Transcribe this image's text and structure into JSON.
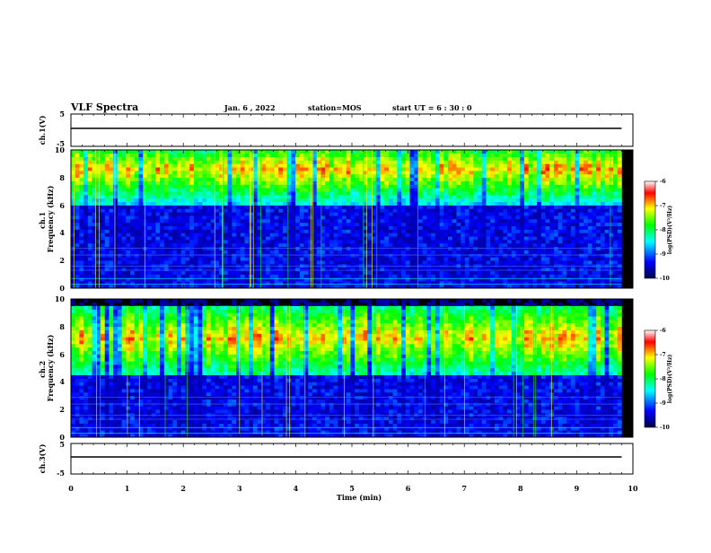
{
  "header": {
    "title": "VLF Spectra",
    "date": "Jan. 6 , 2022",
    "station": "station=MOS",
    "start_ut": "start UT =   6 : 30 : 0"
  },
  "chart_data": [
    {
      "type": "line",
      "panel": "ch.1",
      "ylabel": "ch.1(V)",
      "ylim": [
        -5,
        5
      ],
      "yticks": [
        "5",
        "-5"
      ],
      "xlim": [
        0,
        10
      ],
      "series": [
        {
          "x": [
            0,
            9.8
          ],
          "y": [
            0,
            0
          ]
        }
      ]
    },
    {
      "type": "heatmap",
      "panel": "ch.1",
      "ylabel": "ch.1\nFrequency (kHz)",
      "ylim": [
        0,
        10
      ],
      "yticks": [
        "0",
        "2",
        "4",
        "6",
        "8",
        "10"
      ],
      "xlim": [
        0,
        10
      ],
      "data_xmax": 9.8,
      "band_khz": [
        6,
        10
      ],
      "peak_khz": 8.6,
      "colorbar": {
        "label": "log(PSD)(V²/Hz)",
        "range": [
          -10,
          -6
        ],
        "ticks": [
          "-6",
          "-7",
          "-8",
          "-9",
          "-10"
        ]
      }
    },
    {
      "type": "heatmap",
      "panel": "ch.2",
      "ylabel": "ch.2\nFrequency (kHz)",
      "ylim": [
        0,
        10
      ],
      "yticks": [
        "0",
        "2",
        "4",
        "6",
        "8",
        "10"
      ],
      "xlim": [
        0,
        10
      ],
      "data_xmax": 9.8,
      "band_khz": [
        4.5,
        9.5
      ],
      "peak_khz": 7.2,
      "colorbar": {
        "label": "log(PSD)(V²/Hz)",
        "range": [
          -10,
          -6
        ],
        "ticks": [
          "-6",
          "-7",
          "-8",
          "-9",
          "-10"
        ]
      }
    },
    {
      "type": "line",
      "panel": "ch.3",
      "ylabel": "ch.3(V)",
      "ylim": [
        -5,
        5
      ],
      "yticks": [
        "5",
        "-5"
      ],
      "xlim": [
        0,
        10
      ],
      "xlabel": "Time (min)",
      "xticks": [
        "0",
        "1",
        "2",
        "3",
        "4",
        "5",
        "6",
        "7",
        "8",
        "9",
        "10"
      ],
      "series": [
        {
          "x": [
            0,
            9.8
          ],
          "y": [
            0,
            0
          ]
        }
      ]
    }
  ],
  "colors": {
    "background": "#000000",
    "colormap": [
      "#00004a",
      "#0000ff",
      "#00ffff",
      "#00ff00",
      "#ffff00",
      "#ff0000",
      "#ffffff"
    ]
  }
}
